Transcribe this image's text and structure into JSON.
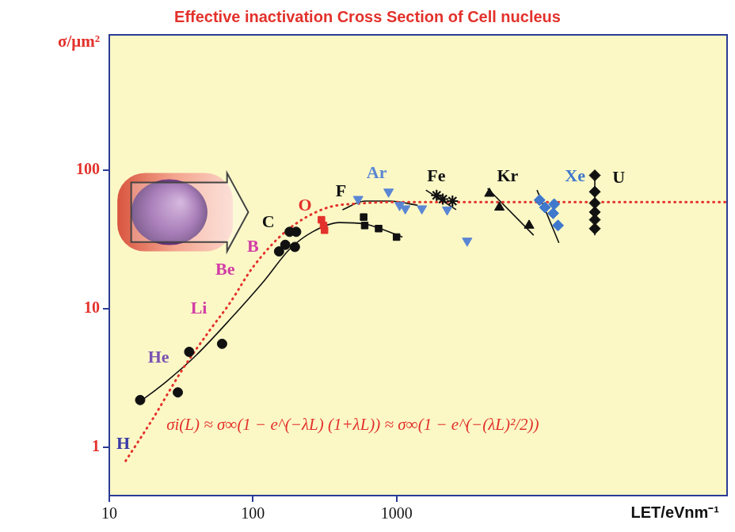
{
  "chart_data": {
    "type": "scatter",
    "title": "Effective inactivation Cross Section of Cell nucleus",
    "x_label": "LET/eVnm⁻¹",
    "y_label": "σ/μm²",
    "log": true,
    "grid": false,
    "xlim": [
      10,
      200000
    ],
    "xticks": [
      10,
      100,
      1000
    ],
    "ylim": [
      0.45,
      950
    ],
    "yticks": [
      1,
      10,
      100
    ],
    "series": [
      {
        "type": "scatter",
        "marker": "circle",
        "color": "#111111",
        "x": [
          16.4,
          30,
          36,
          61
        ],
        "values": [
          2.2,
          2.5,
          4.9,
          5.6
        ]
      },
      {
        "type": "scatter",
        "marker": "circle",
        "color": "#111111",
        "x": [
          152,
          168,
          180,
          200,
          196
        ],
        "values": [
          26,
          29,
          36,
          36,
          28
        ]
      },
      {
        "type": "scatter",
        "marker": "square",
        "color": "#e3312b",
        "x": [
          300,
          315,
          310
        ],
        "values": [
          44,
          37,
          40
        ]
      },
      {
        "type": "scatter",
        "marker": "square",
        "color": "#111111",
        "x": [
          590,
          600,
          750,
          1000
        ],
        "values": [
          46,
          40,
          38,
          33
        ]
      },
      {
        "type": "scatter",
        "marker": "triangle-down",
        "color": "#5b86d4",
        "x": [
          540,
          880,
          1050,
          1150,
          1500,
          2250,
          3100
        ],
        "values": [
          62,
          70,
          56,
          53,
          53,
          52,
          31
        ]
      },
      {
        "type": "scatter",
        "marker": "star",
        "color": "#111111",
        "x": [
          1900,
          2100,
          2450
        ],
        "values": [
          66,
          62,
          60
        ]
      },
      {
        "type": "scatter",
        "marker": "triangle",
        "color": "#111111",
        "x": [
          4430,
          5200,
          8370
        ],
        "values": [
          68,
          54,
          40
        ]
      },
      {
        "type": "scatter",
        "marker": "diamond",
        "color": "#3f78cc",
        "x": [
          9900,
          10800,
          12500,
          12300,
          13300
        ],
        "values": [
          61,
          54,
          57,
          49,
          40
        ]
      },
      {
        "type": "scatter",
        "marker": "diamond",
        "color": "#111111",
        "x": [
          24000,
          24000,
          24000,
          24000,
          24000,
          24000
        ],
        "values": [
          92,
          70,
          58,
          50,
          44,
          38
        ]
      },
      {
        "type": "line",
        "line_style": "dotted",
        "color": "#e3312b",
        "x": [
          13,
          20,
          32,
          50,
          69,
          100,
          168,
          316,
          600,
          1000,
          200000
        ],
        "values": [
          0.8,
          1.6,
          3.6,
          7,
          11,
          20,
          36,
          53,
          58,
          59,
          59
        ]
      },
      {
        "type": "line",
        "line_style": "solid",
        "color": "#111111",
        "x": [
          16,
          25,
          40,
          70,
          120,
          180,
          260,
          400,
          600,
          1100
        ],
        "values": [
          2.1,
          3,
          4.6,
          8.5,
          16,
          27,
          36,
          42,
          41,
          33
        ]
      },
      {
        "type": "line",
        "line_style": "solid",
        "color": "#111111",
        "x": [
          420,
          600,
          900,
          1400
        ],
        "values": [
          52,
          60,
          60,
          56
        ]
      },
      {
        "type": "line",
        "line_style": "solid",
        "color": "#111111",
        "x": [
          1600,
          2600
        ],
        "values": [
          72,
          52
        ]
      },
      {
        "type": "line",
        "line_style": "solid",
        "color": "#111111",
        "x": [
          4300,
          9000
        ],
        "values": [
          74,
          34
        ]
      },
      {
        "type": "line",
        "line_style": "solid",
        "color": "#111111",
        "x": [
          9500,
          13500
        ],
        "values": [
          72,
          30
        ]
      },
      {
        "type": "line",
        "line_style": "solid",
        "color": "#111111",
        "x": [
          24000,
          24000
        ],
        "values": [
          100,
          34
        ]
      }
    ],
    "annotations": [
      {
        "text": "H",
        "x": 12.5,
        "y": 1.05,
        "color": "#3a3aa8"
      },
      {
        "text": "He",
        "x": 22,
        "y": 4.4,
        "color": "#7a52b3"
      },
      {
        "text": "Li",
        "x": 42,
        "y": 10,
        "color": "#d23ca5"
      },
      {
        "text": "Be",
        "x": 64,
        "y": 19,
        "color": "#d23ca5"
      },
      {
        "text": "B",
        "x": 100,
        "y": 28,
        "color": "#d23ca5"
      },
      {
        "text": "C",
        "x": 128,
        "y": 42,
        "color": "#111111"
      },
      {
        "text": "O",
        "x": 230,
        "y": 55,
        "color": "#e3312b"
      },
      {
        "text": "F",
        "x": 410,
        "y": 70,
        "color": "#111111"
      },
      {
        "text": "Ar",
        "x": 728,
        "y": 95,
        "color": "#5b86d4"
      },
      {
        "text": "Fe",
        "x": 1890,
        "y": 90,
        "color": "#111111"
      },
      {
        "text": "Kr",
        "x": 5930,
        "y": 90,
        "color": "#111111"
      },
      {
        "text": "Xe",
        "x": 17500,
        "y": 90,
        "color": "#3f78cc"
      },
      {
        "text": "U",
        "x": 35200,
        "y": 88,
        "color": "#111111"
      }
    ],
    "formula": {
      "text": "σi(L) ≈ σ∞(1 − e^(−λL) (1+λL)) ≈ σ∞(1 − e^(−(λL)²/2))",
      "x": 25,
      "y": 1.45,
      "color": "#e3312b"
    }
  }
}
